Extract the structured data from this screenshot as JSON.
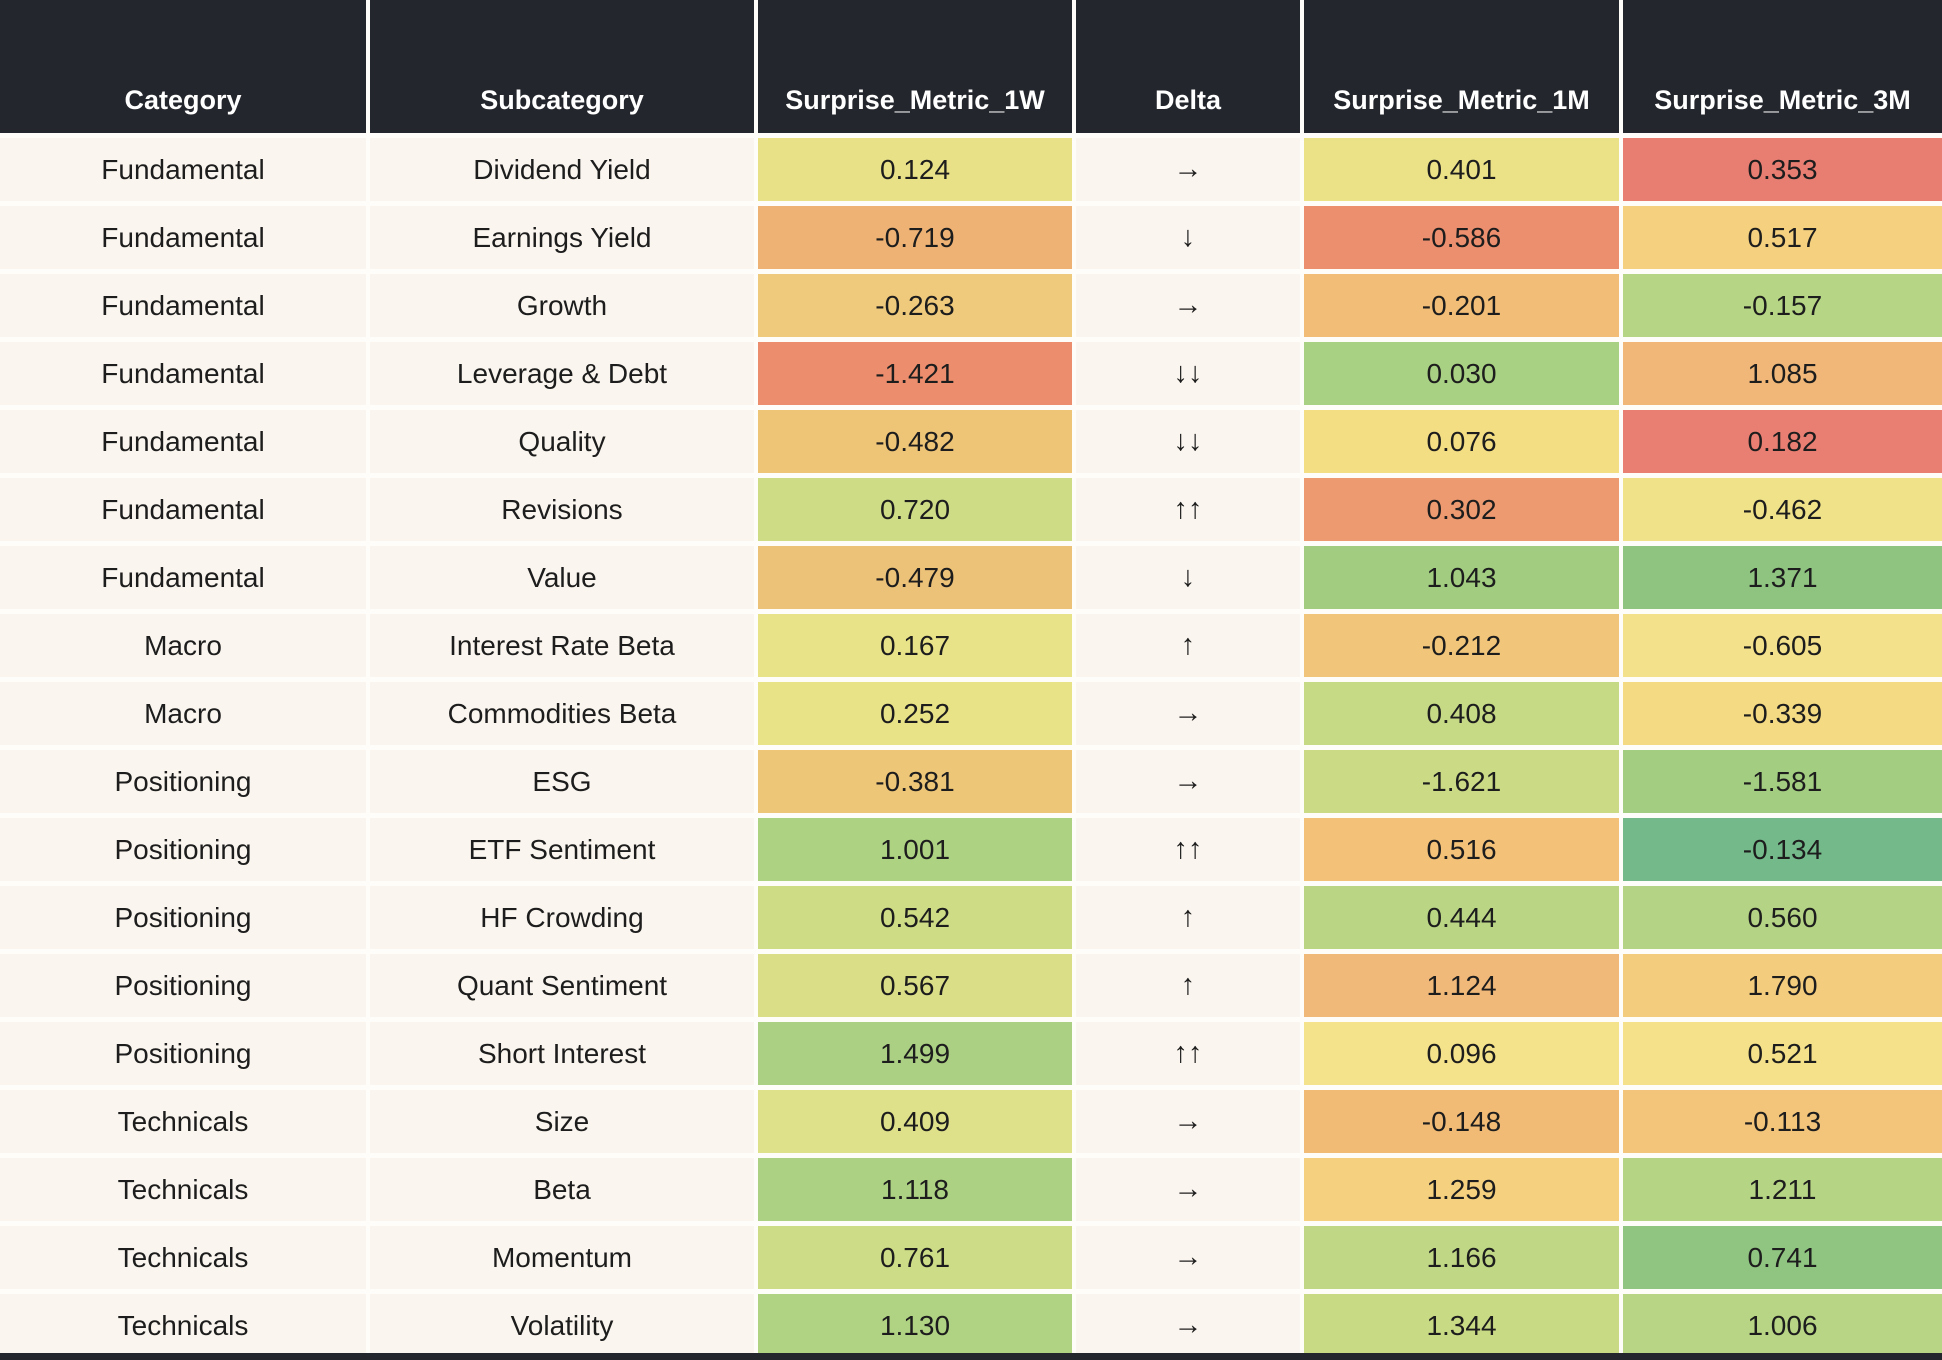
{
  "theme": {
    "header_bg": "#23262c",
    "header_text": "#ffffff",
    "row_bg": "#faf5ee",
    "separator": "#ffffff",
    "text": "#1d1d1d",
    "page_bg": "#fffdfa"
  },
  "chart_data": {
    "type": "table",
    "subtype": "heatmap-table",
    "columns": [
      "Category",
      "Subcategory",
      "Surprise_Metric_1W",
      "Delta",
      "Surprise_Metric_1M",
      "Surprise_Metric_3M"
    ],
    "rows": [
      {
        "category": "Fundamental",
        "subcategory": "Dividend Yield",
        "w1": "0.124",
        "w1_bg": "#e9e187",
        "delta": "→",
        "m1": "0.401",
        "m1_bg": "#ebe287",
        "m3": "0.353",
        "m3_bg": "#e87e72"
      },
      {
        "category": "Fundamental",
        "subcategory": "Earnings Yield",
        "w1": "-0.719",
        "w1_bg": "#eeb274",
        "delta": "↓",
        "m1": "-0.586",
        "m1_bg": "#eb8f6e",
        "m3": "0.517",
        "m3_bg": "#f4d07f"
      },
      {
        "category": "Fundamental",
        "subcategory": "Growth",
        "w1": "-0.263",
        "w1_bg": "#f0ca7c",
        "delta": "→",
        "m1": "-0.201",
        "m1_bg": "#f1bd77",
        "m3": "-0.157",
        "m3_bg": "#b7d685"
      },
      {
        "category": "Fundamental",
        "subcategory": "Leverage & Debt",
        "w1": "-1.421",
        "w1_bg": "#ec8e6d",
        "delta": "↓↓",
        "m1": "0.030",
        "m1_bg": "#a9d183",
        "m3": "1.085",
        "m3_bg": "#f0b778"
      },
      {
        "category": "Fundamental",
        "subcategory": "Quality",
        "w1": "-0.482",
        "w1_bg": "#eec477",
        "delta": "↓↓",
        "m1": "0.076",
        "m1_bg": "#f4de84",
        "m3": "0.182",
        "m3_bg": "#e87f72"
      },
      {
        "category": "Fundamental",
        "subcategory": "Revisions",
        "w1": "0.720",
        "w1_bg": "#cedc86",
        "delta": "↑↑",
        "m1": "0.302",
        "m1_bg": "#ee9a70",
        "m3": "-0.462",
        "m3_bg": "#efe289"
      },
      {
        "category": "Fundamental",
        "subcategory": "Value",
        "w1": "-0.479",
        "w1_bg": "#ecc178",
        "delta": "↓",
        "m1": "1.043",
        "m1_bg": "#a2cd81",
        "m3": "1.371",
        "m3_bg": "#8ec380"
      },
      {
        "category": "Macro",
        "subcategory": "Interest Rate Beta",
        "w1": "0.167",
        "w1_bg": "#e8e288",
        "delta": "↑",
        "m1": "-0.212",
        "m1_bg": "#f1c67a",
        "m3": "-0.605",
        "m3_bg": "#f3e18b"
      },
      {
        "category": "Macro",
        "subcategory": "Commodities Beta",
        "w1": "0.252",
        "w1_bg": "#e9e388",
        "delta": "→",
        "m1": "0.408",
        "m1_bg": "#c6d985",
        "m3": "-0.339",
        "m3_bg": "#f4da83"
      },
      {
        "category": "Positioning",
        "subcategory": "ESG",
        "w1": "-0.381",
        "w1_bg": "#eec678",
        "delta": "→",
        "m1": "-1.621",
        "m1_bg": "#cada85",
        "m3": "-1.581",
        "m3_bg": "#a3cd81"
      },
      {
        "category": "Positioning",
        "subcategory": "ETF Sentiment",
        "w1": "1.001",
        "w1_bg": "#add282",
        "delta": "↑↑",
        "m1": "0.516",
        "m1_bg": "#f3c178",
        "m3": "-0.134",
        "m3_bg": "#74b98a"
      },
      {
        "category": "Positioning",
        "subcategory": "HF Crowding",
        "w1": "0.542",
        "w1_bg": "#cedc86",
        "delta": "↑",
        "m1": "0.444",
        "m1_bg": "#bad685",
        "m3": "0.560",
        "m3_bg": "#b4d384"
      },
      {
        "category": "Positioning",
        "subcategory": "Quant Sentiment",
        "w1": "0.567",
        "w1_bg": "#dade87",
        "delta": "↑",
        "m1": "1.124",
        "m1_bg": "#f1b979",
        "m3": "1.790",
        "m3_bg": "#f3cc7d"
      },
      {
        "category": "Positioning",
        "subcategory": "Short Interest",
        "w1": "1.499",
        "w1_bg": "#abd083",
        "delta": "↑↑",
        "m1": "0.096",
        "m1_bg": "#f5e38b",
        "m3": "0.521",
        "m3_bg": "#f4e189"
      },
      {
        "category": "Technicals",
        "subcategory": "Size",
        "w1": "0.409",
        "w1_bg": "#dfe18a",
        "delta": "→",
        "m1": "-0.148",
        "m1_bg": "#f1bb76",
        "m3": "-0.113",
        "m3_bg": "#f2c57a"
      },
      {
        "category": "Technicals",
        "subcategory": "Beta",
        "w1": "1.118",
        "w1_bg": "#add182",
        "delta": "→",
        "m1": "1.259",
        "m1_bg": "#f5d07f",
        "m3": "1.211",
        "m3_bg": "#b5d484"
      },
      {
        "category": "Technicals",
        "subcategory": "Momentum",
        "w1": "0.761",
        "w1_bg": "#cddc86",
        "delta": "→",
        "m1": "1.166",
        "m1_bg": "#c0d885",
        "m3": "0.741",
        "m3_bg": "#8fc481"
      },
      {
        "category": "Technicals",
        "subcategory": "Volatility",
        "w1": "1.130",
        "w1_bg": "#b0d283",
        "delta": "→",
        "m1": "1.344",
        "m1_bg": "#c9da85",
        "m3": "1.006",
        "m3_bg": "#b7d584"
      }
    ]
  }
}
